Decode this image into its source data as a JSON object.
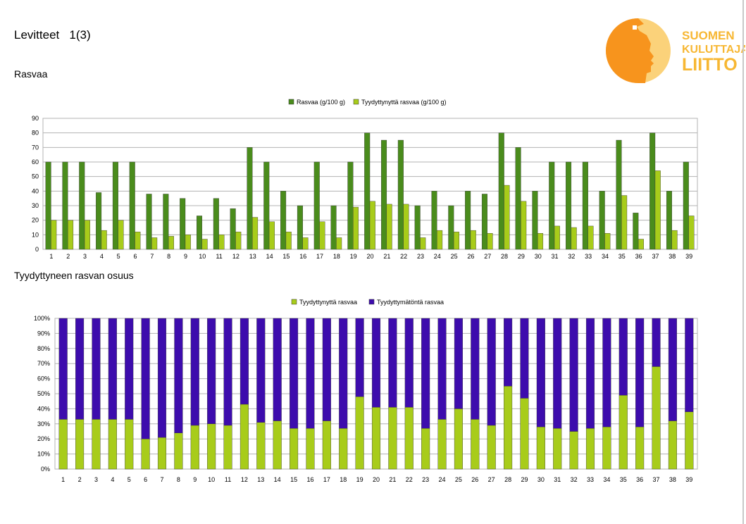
{
  "page": {
    "title": "Levitteet   1(3)",
    "section1_title": "Rasvaa",
    "section2_title": "Tyydyttyneen rasvan osuus"
  },
  "logo": {
    "line1": "SUOMEN",
    "line2": "KULUTTAJA-",
    "line3": "LIITTO",
    "color_orange": "#f7941d",
    "color_light": "#fbd27a"
  },
  "chart_data": [
    {
      "type": "bar",
      "categories": [
        "1",
        "2",
        "3",
        "4",
        "5",
        "6",
        "7",
        "8",
        "9",
        "10",
        "11",
        "12",
        "13",
        "14",
        "15",
        "16",
        "17",
        "18",
        "19",
        "20",
        "21",
        "22",
        "23",
        "24",
        "25",
        "26",
        "27",
        "28",
        "29",
        "30",
        "31",
        "32",
        "33",
        "34",
        "35",
        "36",
        "37",
        "38",
        "39"
      ],
      "series": [
        {
          "name": "Rasvaa (g/100 g)",
          "color": "#4a8c1c",
          "values": [
            60,
            60,
            60,
            39,
            60,
            60,
            38,
            38,
            35,
            23,
            35,
            28,
            70,
            60,
            40,
            30,
            60,
            30,
            60,
            80,
            75,
            75,
            30,
            40,
            30,
            40,
            38,
            80,
            70,
            40,
            60,
            60,
            60,
            40,
            75,
            25,
            80,
            40,
            60
          ]
        },
        {
          "name": "Tyydyttynyttä rasvaa (g/100 g)",
          "color": "#a8cc1a",
          "values": [
            20,
            20,
            20,
            13,
            20,
            12,
            8,
            9,
            10,
            7,
            10,
            12,
            22,
            19,
            12,
            8,
            19,
            8,
            29,
            33,
            31,
            31,
            8,
            13,
            12,
            13,
            11,
            44,
            33,
            11,
            16,
            15,
            16,
            11,
            37,
            7,
            54,
            13,
            23
          ]
        }
      ],
      "ylim": [
        0,
        90
      ],
      "yticks": [
        0,
        10,
        20,
        30,
        40,
        50,
        60,
        70,
        80,
        90
      ],
      "grid": true,
      "legend": "top"
    },
    {
      "type": "bar",
      "stacked": true,
      "categories": [
        "1",
        "2",
        "3",
        "4",
        "5",
        "6",
        "7",
        "8",
        "9",
        "10",
        "11",
        "12",
        "13",
        "14",
        "15",
        "16",
        "17",
        "18",
        "19",
        "20",
        "21",
        "22",
        "23",
        "24",
        "25",
        "26",
        "27",
        "28",
        "29",
        "30",
        "31",
        "32",
        "33",
        "34",
        "35",
        "36",
        "37",
        "38",
        "39"
      ],
      "series": [
        {
          "name": "Tyydyttynyttä rasvaa",
          "color": "#a8cc1a",
          "values": [
            33,
            33,
            33,
            33,
            33,
            20,
            21,
            24,
            29,
            30,
            29,
            43,
            31,
            32,
            27,
            27,
            32,
            27,
            48,
            41,
            41,
            41,
            27,
            33,
            40,
            33,
            29,
            55,
            47,
            28,
            27,
            25,
            27,
            28,
            49,
            28,
            68,
            32,
            38
          ]
        },
        {
          "name": "Tyydyttymätöntä rasvaa",
          "color": "#3d0cad",
          "values": [
            67,
            67,
            67,
            67,
            67,
            80,
            79,
            76,
            71,
            70,
            71,
            57,
            69,
            68,
            73,
            73,
            68,
            73,
            52,
            59,
            59,
            59,
            73,
            67,
            60,
            67,
            71,
            45,
            53,
            72,
            73,
            75,
            73,
            72,
            51,
            72,
            32,
            68,
            62
          ]
        }
      ],
      "ylim": [
        0,
        100
      ],
      "yticks": [
        "0%",
        "10%",
        "20%",
        "30%",
        "40%",
        "50%",
        "60%",
        "70%",
        "80%",
        "90%",
        "100%"
      ],
      "grid": true,
      "legend": "top"
    }
  ]
}
